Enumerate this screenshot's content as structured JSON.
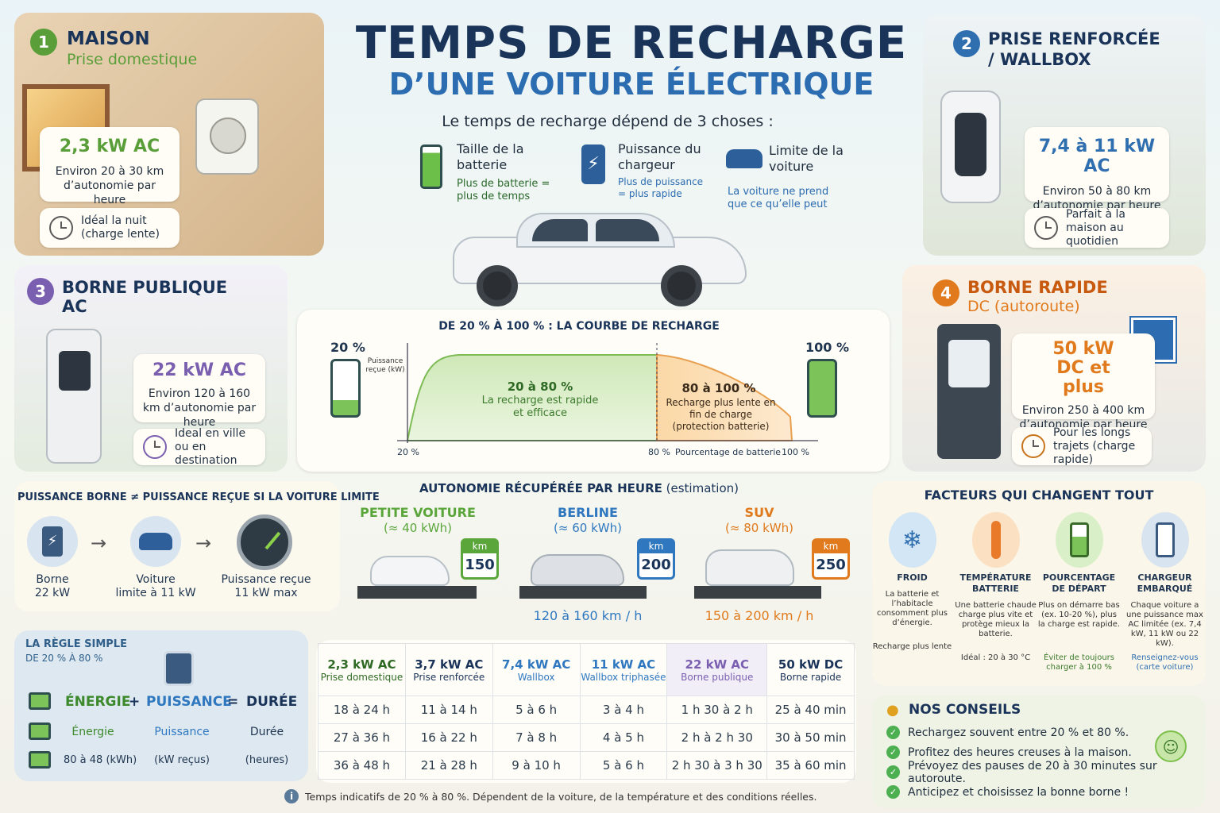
{
  "header": {
    "title": "TEMPS DE RECHARGE",
    "subtitle": "D’UNE VOITURE ÉLECTRIQUE",
    "intro": "Le temps de recharge dépend de 3 choses :"
  },
  "factors3": [
    {
      "title": "Taille de la batterie",
      "desc": "Plus de batterie = plus de temps"
    },
    {
      "title": "Puissance du chargeur",
      "desc": "Plus de puissance = plus rapide"
    },
    {
      "title": "Limite de la voiture",
      "desc": "La voiture ne prend que ce qu’elle peut"
    }
  ],
  "sources": [
    {
      "num": "1",
      "title": "MAISON",
      "subtitle": "Prise domestique",
      "power": "2,3 kW AC",
      "range": "Environ 20 à 30 km d’autonomie par heure",
      "tip": "Idéal la nuit (charge lente)",
      "color": "#5a9e3a"
    },
    {
      "num": "2",
      "title": "PRISE RENFORCÉE / WALLBOX",
      "subtitle": "",
      "power": "7,4 à 11 kW AC",
      "range": "Environ 50 à 80 km d’autonomie par heure",
      "tip": "Parfait à la maison au quotidien",
      "color": "#2f6fb0"
    },
    {
      "num": "3",
      "title": "BORNE PUBLIQUE",
      "subtitle": "AC",
      "power": "22 kW AC",
      "range": "Environ 120 à 160 km d’autonomie par heure",
      "tip": "Ideal en ville ou en destination",
      "color": "#7a5fb0"
    },
    {
      "num": "4",
      "title": "BORNE RAPIDE",
      "subtitle": "DC (autoroute)",
      "power": "50 kW DC et plus",
      "range": "Environ 250 à 400 km d’autonomie par heure",
      "tip": "Pour les longs trajets (charge rapide)",
      "color": "#e07a1c"
    }
  ],
  "curve": {
    "title": "DE 20 % À 100 % : LA COURBE DE RECHARGE",
    "left_label": "20 %",
    "right_label": "100 %",
    "ylabel": "Puissance reçue (kW)",
    "xlabel": "Pourcentage de batterie",
    "x_ticks": [
      "20 %",
      "80 %",
      "100 %"
    ],
    "zone1_title": "20 à 80 %",
    "zone1_desc": "La recharge est rapide et efficace",
    "zone2_title": "80 à 100 %",
    "zone2_desc": "Recharge plus lente en fin de charge (protection batterie)"
  },
  "limit": {
    "title": "PUISSANCE BORNE ≠ PUISSANCE REÇUE SI LA VOITURE LIMITE",
    "items": [
      {
        "label": "Borne",
        "value": "22 kW"
      },
      {
        "label": "Voiture",
        "value": "limite à 11 kW"
      },
      {
        "label": "Puissance reçue",
        "value": "11 kW max"
      }
    ]
  },
  "autonomy": {
    "title": "AUTONOMIE RÉCUPÉRÉE PAR HEURE",
    "title_note": "(estimation)",
    "unit": "km",
    "cars": [
      {
        "name": "PETITE VOITURE",
        "battery": "(≈ 40 kWh)",
        "km": "150",
        "range": "",
        "color": "#5aa63a"
      },
      {
        "name": "BERLINE",
        "battery": "(≈ 60 kWh)",
        "km": "200",
        "range": "120 à 160 km / h",
        "color": "#2f78c0"
      },
      {
        "name": "SUV",
        "battery": "(≈ 80 kWh)",
        "km": "250",
        "range": "150 à 200 km / h",
        "color": "#e07a1c"
      }
    ]
  },
  "facteurs": {
    "title": "FACTEURS QUI CHANGENT TOUT",
    "items": [
      {
        "name": "FROID",
        "desc": "La batterie et l’habitacle consomment plus d’énergie.",
        "bottom": "Recharge plus lente"
      },
      {
        "name": "TEMPÉRATURE BATTERIE",
        "desc": "Une batterie chaude charge plus vite et protège mieux la batterie.",
        "bottom": "Idéal : 20 à 30 °C"
      },
      {
        "name": "POURCENTAGE DE DÉPART",
        "desc": "Plus on démarre bas (ex. 10-20 %), plus la charge est rapide.",
        "bottom": "Éviter de toujours charger à 100 %"
      },
      {
        "name": "CHARGEUR EMBARQUÉ",
        "desc": "Chaque voiture a une puissance max AC limitée (ex. 7,4 kW, 11 kW ou 22 kW).",
        "bottom": "Renseignez-vous (carte voiture)"
      }
    ]
  },
  "regle": {
    "title": "LA RÈGLE SIMPLE",
    "subtitle": "DE 20 % À 80 %",
    "energie": "ÉNERGIE",
    "plus": "+",
    "puissance": "PUISSANCE",
    "equals": "=",
    "duree": "DURÉE",
    "energie_sub": "Énergie",
    "puissance_sub": "Puissance",
    "duree_sub": "Durée",
    "energie_unit": "80 à 48 (kWh)",
    "puissance_unit": "(kW reçus)",
    "duree_unit": "(heures)"
  },
  "table": {
    "headers": [
      {
        "power": "2,3 kW AC",
        "type": "Prise domestique"
      },
      {
        "power": "3,7 kW AC",
        "type": "Prise renforcée"
      },
      {
        "power": "7,4 kW AC",
        "type": "Wallbox"
      },
      {
        "power": "11 kW AC",
        "type": "Wallbox triphasée"
      },
      {
        "power": "22 kW AC",
        "type": "Borne publique"
      },
      {
        "power": "50 kW DC",
        "type": "Borne rapide"
      }
    ],
    "rows": [
      [
        "18 à 24 h",
        "11 à 14 h",
        "5 à 6 h",
        "3 à 4 h",
        "1 h 30 à 2 h",
        "25 à 40 min"
      ],
      [
        "27 à 36 h",
        "16 à 22 h",
        "7 à 8 h",
        "4 à 5 h",
        "2 h à 2 h 30",
        "30 à 50 min"
      ],
      [
        "36 à 48 h",
        "21 à 28 h",
        "9 à 10 h",
        "5 à 6 h",
        "2 h 30 à 3 h 30",
        "35 à 60 min"
      ]
    ],
    "footnote": "Temps indicatifs de 20 % à 80 %. Dépendent de la voiture, de la température et des conditions réelles."
  },
  "conseils": {
    "title": "NOS CONSEILS",
    "items": [
      "Rechargez souvent entre 20 % et 80 %.",
      "Profitez des heures creuses à la maison.",
      "Prévoyez des pauses de 20 à 30 minutes sur autoroute.",
      "Anticipez et choisissez la bonne borne !"
    ]
  }
}
